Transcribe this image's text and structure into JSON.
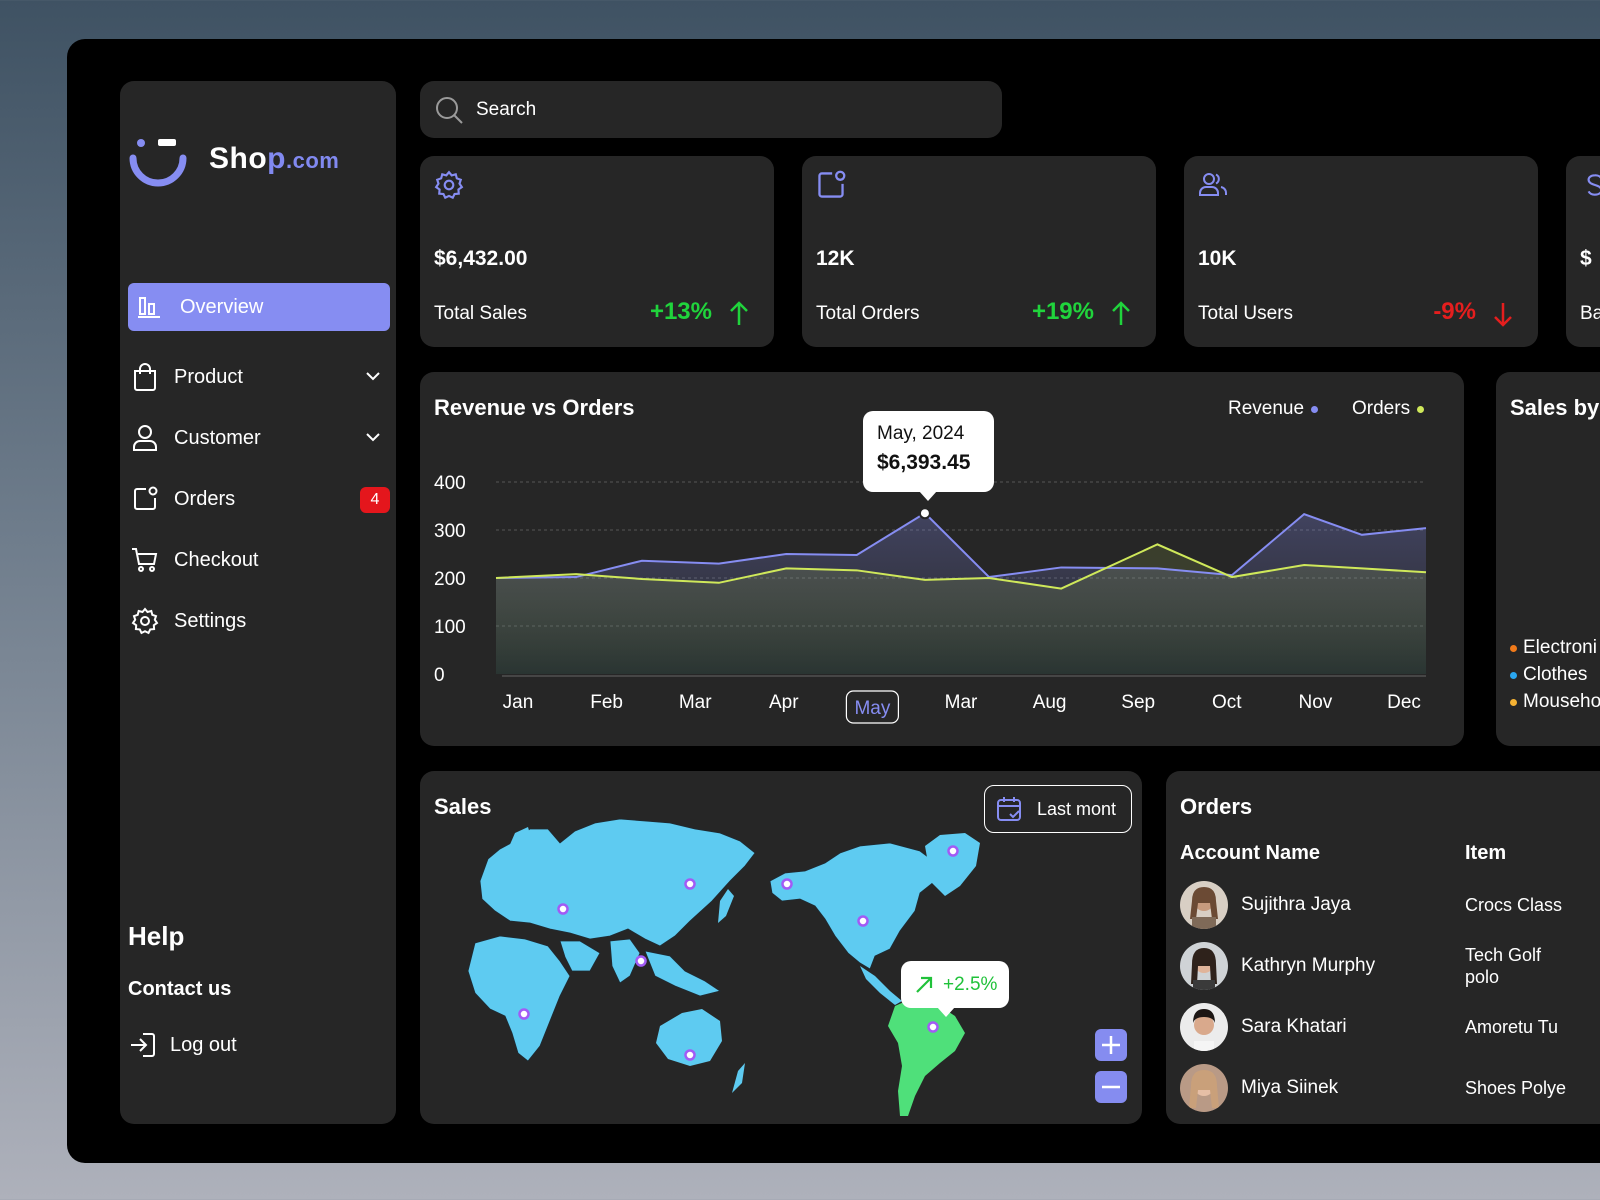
{
  "brand": {
    "name_main": "Sho",
    "name_p": "p",
    "name_domain": ".com"
  },
  "sidebar": {
    "items": [
      {
        "label": "Overview",
        "icon": "bar-chart-icon",
        "active": true
      },
      {
        "label": "Product",
        "icon": "shopping-bag-icon",
        "expandable": true
      },
      {
        "label": "Customer",
        "icon": "user-icon",
        "expandable": true
      },
      {
        "label": "Orders",
        "icon": "orders-icon",
        "badge": "4"
      },
      {
        "label": "Checkout",
        "icon": "cart-icon"
      },
      {
        "label": "Settings",
        "icon": "gear-icon"
      }
    ],
    "help_title": "Help",
    "contact": "Contact us",
    "logout": "Log out"
  },
  "search": {
    "placeholder": "Search"
  },
  "stats": [
    {
      "value": "$6,432.00",
      "label": "Total Sales",
      "change": "+13%",
      "trend": "up",
      "icon": "gear-icon"
    },
    {
      "value": "12K",
      "label": "Total Orders",
      "change": "+19%",
      "trend": "up",
      "icon": "orders-icon"
    },
    {
      "value": "10K",
      "label": "Total Users",
      "change": "-9%",
      "trend": "down",
      "icon": "users-icon"
    },
    {
      "value": "$",
      "label": "Ba",
      "icon": "dollar-icon"
    }
  ],
  "colors": {
    "accent": "#868df2",
    "revenue": "#868df2",
    "orders": "#cfe85a",
    "up": "#20d43c",
    "down": "#e51e1e",
    "map": "#5ecbf1",
    "map_highlight": "#4fe07a"
  },
  "chart_data": {
    "type": "line",
    "title": "Revenue vs Orders",
    "categories": [
      "Jan",
      "Feb",
      "Mar",
      "Apr",
      "May",
      "Mar",
      "Aug",
      "Sep",
      "Oct",
      "Nov",
      "Dec"
    ],
    "point_labels": [],
    "selected_category": "May",
    "series": [
      {
        "name": "Revenue",
        "x": [
          0,
          1,
          1.82,
          2.78,
          3.62,
          4.5,
          5.35,
          6.15,
          7.05,
          8.25,
          9.18,
          10.08,
          10.8,
          11.6
        ],
        "values": [
          200,
          202,
          236,
          230,
          250,
          248,
          335,
          202,
          222,
          220,
          206,
          333,
          290,
          304
        ]
      },
      {
        "name": "Orders",
        "x": [
          0,
          1,
          1.82,
          2.78,
          3.62,
          4.5,
          5.35,
          6.15,
          7.05,
          8.25,
          9.18,
          10.08,
          10.8,
          11.6
        ],
        "values": [
          200,
          208,
          198,
          190,
          220,
          216,
          196,
          200,
          178,
          270,
          202,
          227,
          220,
          212
        ]
      }
    ],
    "x_range": [
      0,
      11.6
    ],
    "ylim": [
      0,
      400
    ],
    "yticks": [
      400,
      300,
      200,
      100,
      0
    ],
    "grid": true,
    "legend": "top-right",
    "tooltip": {
      "label": "May, 2024",
      "value": "$6,393.45"
    }
  },
  "sales_by": {
    "title": "Sales by",
    "categories": [
      {
        "label": "Electroni",
        "color": "#f07a1a"
      },
      {
        "label": "Clothes",
        "color": "#2aa7f0"
      },
      {
        "label": "Mouseho",
        "color": "#f5b233"
      }
    ]
  },
  "sales": {
    "title": "Sales",
    "period": "Last mont",
    "growth": "+2.5%",
    "zoom_in": "+",
    "zoom_out": "−"
  },
  "orders": {
    "title": "Orders",
    "col_account": "Account Name",
    "col_item": "Item",
    "rows": [
      {
        "name": "Sujithra Jaya",
        "item": "Crocs Class"
      },
      {
        "name": "Kathryn Murphy",
        "item": "Tech Golf polo"
      },
      {
        "name": "Sara Khatari",
        "item": "Amoretu Tu"
      },
      {
        "name": "Miya Siinek",
        "item": "Shoes Polye"
      }
    ]
  }
}
